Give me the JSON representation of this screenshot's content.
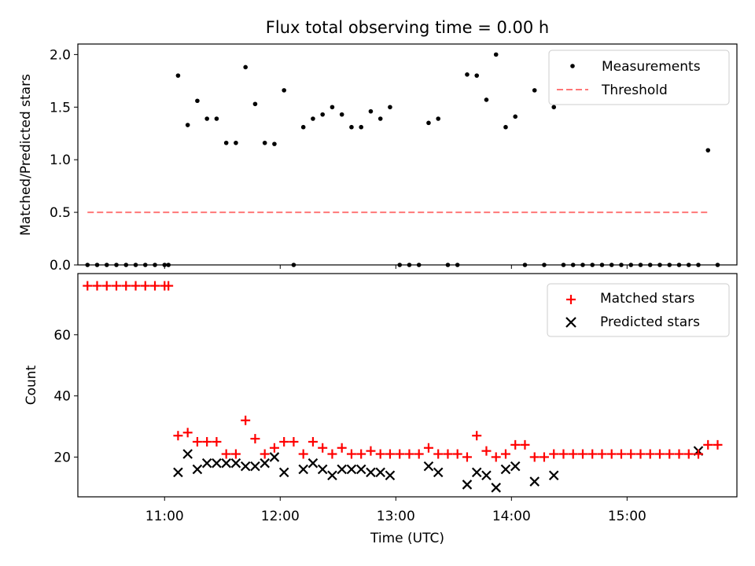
{
  "chart_data": [
    {
      "type": "scatter",
      "title": "Flux total observing time = 0.00 h",
      "xlabel": "",
      "ylabel": "Matched/Predicted stars",
      "ylim": [
        0,
        2.1
      ],
      "yticks": [
        "0.0",
        "0.5",
        "1.0",
        "1.5",
        "2.0"
      ],
      "xlim": [
        "10:15",
        "15:57"
      ],
      "legend_position": "upper right",
      "series": [
        {
          "name": "Measurements",
          "kind": "points",
          "color": "#000000",
          "x": [
            "10:20",
            "10:25",
            "10:30",
            "10:35",
            "10:40",
            "10:45",
            "10:50",
            "10:55",
            "11:00",
            "11:02",
            "11:07",
            "11:12",
            "11:17",
            "11:22",
            "11:27",
            "11:32",
            "11:37",
            "11:42",
            "11:47",
            "11:52",
            "11:57",
            "12:02",
            "12:07",
            "12:12",
            "12:17",
            "12:22",
            "12:27",
            "12:32",
            "12:37",
            "12:42",
            "12:47",
            "12:52",
            "12:57",
            "13:02",
            "13:07",
            "13:12",
            "13:17",
            "13:22",
            "13:27",
            "13:32",
            "13:37",
            "13:42",
            "13:47",
            "13:52",
            "13:57",
            "14:02",
            "14:07",
            "14:12",
            "14:17",
            "14:22",
            "14:27",
            "14:32",
            "14:37",
            "14:42",
            "14:47",
            "14:52",
            "14:57",
            "15:02",
            "15:07",
            "15:12",
            "15:17",
            "15:22",
            "15:27",
            "15:32",
            "15:37",
            "15:42",
            "15:47"
          ],
          "y": [
            0,
            0,
            0,
            0,
            0,
            0,
            0,
            0,
            0,
            0,
            1.8,
            1.33,
            1.56,
            1.39,
            1.39,
            1.16,
            1.16,
            1.88,
            1.53,
            1.16,
            1.15,
            1.66,
            0,
            1.31,
            1.39,
            1.43,
            1.5,
            1.43,
            1.31,
            1.31,
            1.46,
            1.39,
            1.5,
            0,
            0,
            0,
            1.35,
            1.39,
            0,
            0,
            1.81,
            1.8,
            1.57,
            2.0,
            1.31,
            1.41,
            0,
            1.66,
            0,
            1.5,
            0,
            0,
            0,
            0,
            0,
            0,
            0,
            0,
            0,
            0,
            0,
            0,
            0,
            0,
            0,
            1.09,
            0
          ]
        },
        {
          "name": "Threshold",
          "kind": "dashed-line",
          "color": "#ff7777",
          "x": [
            "10:20",
            "15:42"
          ],
          "y": [
            0.5,
            0.5
          ]
        }
      ]
    },
    {
      "type": "scatter",
      "title": "",
      "xlabel": "Time (UTC)",
      "ylabel": "Count",
      "ylim": [
        7,
        80
      ],
      "yticks": [
        "20",
        "40",
        "60"
      ],
      "xlim": [
        "10:15",
        "15:57"
      ],
      "xticks": [
        "11:00",
        "12:00",
        "13:00",
        "14:00",
        "15:00"
      ],
      "legend_position": "upper right",
      "series": [
        {
          "name": "Matched stars",
          "kind": "plus",
          "color": "#ff0000",
          "x": [
            "10:20",
            "10:25",
            "10:30",
            "10:35",
            "10:40",
            "10:45",
            "10:50",
            "10:55",
            "11:00",
            "11:02",
            "11:07",
            "11:12",
            "11:17",
            "11:22",
            "11:27",
            "11:32",
            "11:37",
            "11:42",
            "11:47",
            "11:52",
            "11:57",
            "12:02",
            "12:07",
            "12:12",
            "12:17",
            "12:22",
            "12:27",
            "12:32",
            "12:37",
            "12:42",
            "12:47",
            "12:52",
            "12:57",
            "13:02",
            "13:07",
            "13:12",
            "13:17",
            "13:22",
            "13:27",
            "13:32",
            "13:37",
            "13:42",
            "13:47",
            "13:52",
            "13:57",
            "14:02",
            "14:07",
            "14:12",
            "14:17",
            "14:22",
            "14:27",
            "14:32",
            "14:37",
            "14:42",
            "14:47",
            "14:52",
            "14:57",
            "15:02",
            "15:07",
            "15:12",
            "15:17",
            "15:22",
            "15:27",
            "15:32",
            "15:37",
            "15:42",
            "15:47"
          ],
          "y": [
            76,
            76,
            76,
            76,
            76,
            76,
            76,
            76,
            76,
            76,
            27,
            28,
            25,
            25,
            25,
            21,
            21,
            32,
            26,
            21,
            23,
            25,
            25,
            21,
            25,
            23,
            21,
            23,
            21,
            21,
            22,
            21,
            21,
            21,
            21,
            21,
            23,
            21,
            21,
            21,
            20,
            27,
            22,
            20,
            21,
            24,
            24,
            20,
            20,
            21,
            21,
            21,
            21,
            21,
            21,
            21,
            21,
            21,
            21,
            21,
            21,
            21,
            21,
            21,
            21,
            24,
            24
          ]
        },
        {
          "name": "Predicted stars",
          "kind": "x",
          "color": "#000000",
          "x": [
            "11:07",
            "11:12",
            "11:17",
            "11:22",
            "11:27",
            "11:32",
            "11:37",
            "11:42",
            "11:47",
            "11:52",
            "11:57",
            "12:02",
            "12:12",
            "12:17",
            "12:22",
            "12:27",
            "12:32",
            "12:37",
            "12:42",
            "12:47",
            "12:52",
            "12:57",
            "13:17",
            "13:22",
            "13:37",
            "13:42",
            "13:47",
            "13:52",
            "13:57",
            "14:02",
            "14:12",
            "14:22",
            "15:37"
          ],
          "y": [
            15,
            21,
            16,
            18,
            18,
            18,
            18,
            17,
            17,
            18,
            20,
            15,
            16,
            18,
            16,
            14,
            16,
            16,
            16,
            15,
            15,
            14,
            17,
            15,
            11,
            15,
            14,
            10,
            16,
            17,
            12,
            14,
            22
          ]
        }
      ]
    }
  ]
}
